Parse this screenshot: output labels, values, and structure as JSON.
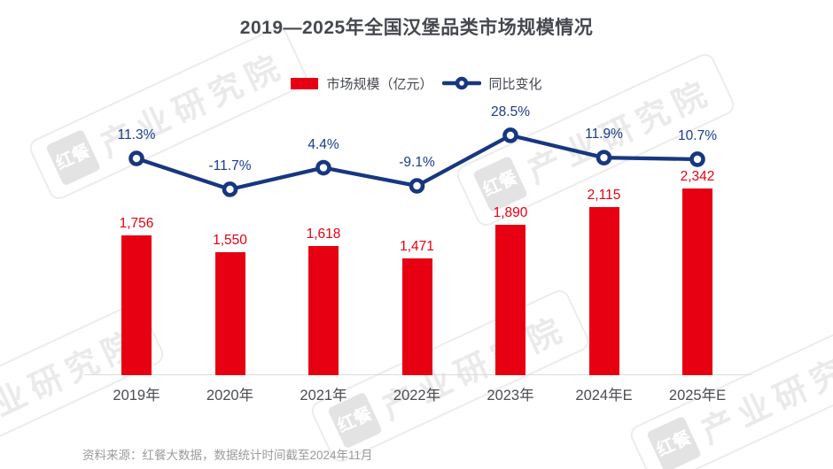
{
  "page": {
    "title": "2019—2025年全国汉堡品类市场规模情况"
  },
  "legend": {
    "items": [
      {
        "label": "市场规模（亿元）",
        "type": "bar"
      },
      {
        "label": "同比变化",
        "type": "line"
      }
    ],
    "position": "top-center"
  },
  "footer": {
    "source_note": "资料来源：红餐大数据，数据统计时间截至2024年11月"
  },
  "watermark": {
    "logo_text": "红餐",
    "brand_text": "产业研究院"
  },
  "colors": {
    "bar_red": "#E60012",
    "line_navy": "#17377F",
    "pct_label_navy": "#1A3C8C",
    "title_gray": "#45484F",
    "axis_label_gray": "#4A4D52",
    "axis_line_gray": "#DBDBDB",
    "source_gray": "#9B9B9B",
    "watermark_gray": "#EAEAEA"
  },
  "chart_data": {
    "type": "bar",
    "secondary_type": "line",
    "title": "2019—2025年全国汉堡品类市场规模情况",
    "xlabel": "",
    "ylabel": "",
    "grid": false,
    "legend_position": "top",
    "categories": [
      "2019年",
      "2020年",
      "2021年",
      "2022年",
      "2023年",
      "2024年E",
      "2025年E"
    ],
    "series": [
      {
        "name": "市场规模（亿元）",
        "type": "bar",
        "values": [
          1756,
          1550,
          1618,
          1471,
          1890,
          2115,
          2342
        ],
        "labels": [
          "1,756",
          "1,550",
          "1,618",
          "1,471",
          "1,890",
          "2,115",
          "2,342"
        ],
        "axis_range": [
          0,
          2600
        ]
      },
      {
        "name": "同比变化",
        "type": "line",
        "values": [
          11.3,
          -11.7,
          4.4,
          -9.1,
          28.5,
          11.9,
          10.7
        ],
        "labels": [
          "11.3%",
          "-11.7%",
          "4.4%",
          "-9.1%",
          "28.5%",
          "11.9%",
          "10.7%"
        ],
        "unit": "%"
      }
    ]
  }
}
